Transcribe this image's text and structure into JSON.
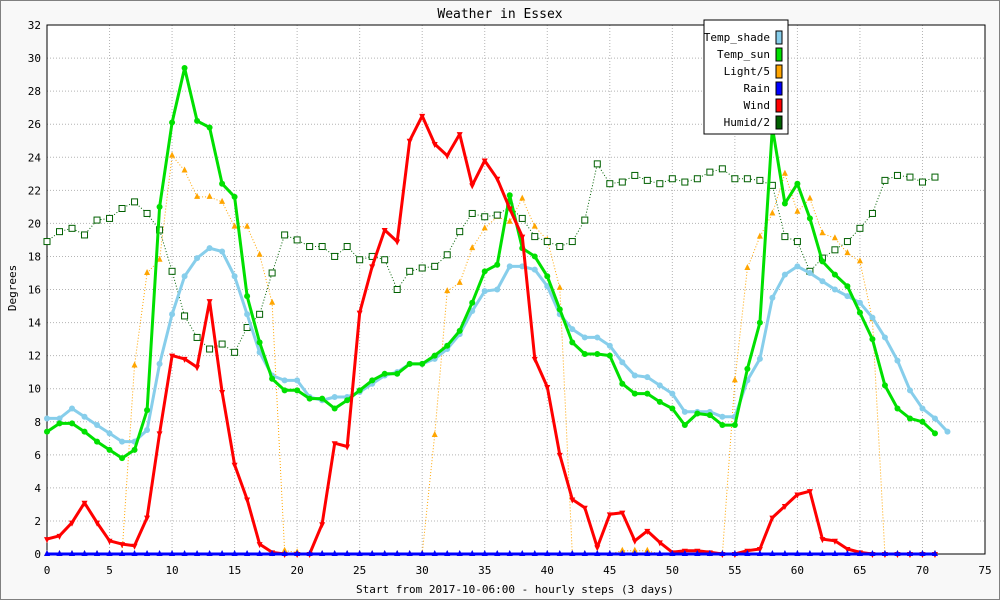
{
  "chart_data": {
    "type": "line",
    "title": "Weather in Essex",
    "xlabel": "Start from 2017-10-06:00 - hourly steps (3 days)",
    "ylabel": "Degrees",
    "xlim": [
      0,
      75
    ],
    "ylim": [
      0,
      32
    ],
    "xticks": [
      0,
      5,
      10,
      15,
      20,
      25,
      30,
      35,
      40,
      45,
      50,
      55,
      60,
      65,
      70,
      75
    ],
    "yticks": [
      0,
      2,
      4,
      6,
      8,
      10,
      12,
      14,
      16,
      18,
      20,
      22,
      24,
      26,
      28,
      30,
      32
    ],
    "grid": true,
    "legend_position": "top-right",
    "series": [
      {
        "name": "Temp_shade",
        "color": "#87ceeb",
        "values": [
          8.2,
          8.2,
          8.8,
          8.3,
          7.8,
          7.3,
          6.8,
          6.8,
          7.5,
          11.5,
          14.5,
          16.8,
          17.9,
          18.5,
          18.3,
          16.8,
          14.5,
          12.2,
          10.8,
          10.5,
          10.5,
          9.5,
          9.3,
          9.5,
          9.5,
          9.8,
          10.3,
          10.8,
          11.0,
          11.5,
          11.5,
          11.8,
          12.4,
          13.3,
          14.7,
          15.9,
          16.0,
          17.4,
          17.4,
          17.2,
          16.2,
          14.5,
          13.6,
          13.1,
          13.1,
          12.6,
          11.6,
          10.8,
          10.7,
          10.2,
          9.7,
          8.6,
          8.6,
          8.6,
          8.3,
          8.3,
          10.5,
          11.8,
          15.5,
          16.9,
          17.4,
          17.0,
          16.5,
          16.0,
          15.6,
          15.2,
          14.3,
          13.1,
          11.7,
          9.9,
          8.8,
          8.2,
          7.4
        ]
      },
      {
        "name": "Temp_sun",
        "color": "#00e000",
        "values": [
          7.4,
          7.9,
          7.9,
          7.4,
          6.8,
          6.3,
          5.8,
          6.3,
          8.7,
          21.0,
          26.1,
          29.4,
          26.2,
          25.8,
          22.4,
          21.6,
          15.6,
          12.8,
          10.6,
          9.9,
          9.9,
          9.4,
          9.4,
          8.8,
          9.3,
          9.9,
          10.5,
          10.9,
          10.9,
          11.5,
          11.5,
          12.0,
          12.6,
          13.5,
          15.2,
          17.1,
          17.5,
          21.7,
          18.5,
          18.0,
          16.8,
          14.8,
          12.8,
          12.1,
          12.1,
          12.0,
          10.3,
          9.7,
          9.7,
          9.2,
          8.8,
          7.8,
          8.5,
          8.4,
          7.8,
          7.8,
          11.2,
          14.0,
          25.8,
          21.2,
          22.4,
          20.3,
          17.7,
          16.9,
          16.2,
          14.6,
          13.0,
          10.2,
          8.8,
          8.2,
          8.0,
          7.3
        ]
      },
      {
        "name": "Light/5",
        "color": "#ffa500",
        "values": [
          0,
          0,
          0,
          0,
          0,
          0,
          0,
          11.4,
          17.0,
          17.8,
          24.1,
          23.2,
          21.6,
          21.6,
          21.3,
          19.8,
          19.8,
          18.1,
          15.2,
          0.2,
          0.1,
          0,
          0,
          0,
          0,
          0,
          0,
          0,
          0,
          0,
          0,
          7.2,
          15.9,
          16.4,
          18.5,
          19.7,
          20.4,
          20.1,
          21.5,
          19.8,
          19.0,
          16.1,
          0,
          0,
          0,
          0,
          0.2,
          0.2,
          0.2,
          0,
          0,
          0,
          0,
          0,
          0,
          10.5,
          17.3,
          19.2,
          20.6,
          23.0,
          20.7,
          21.5,
          19.4,
          19.1,
          18.2,
          17.7,
          14.2,
          0,
          0,
          0,
          0,
          0
        ]
      },
      {
        "name": "Rain",
        "color": "#0000ff",
        "values": [
          0,
          0,
          0,
          0,
          0,
          0,
          0,
          0,
          0,
          0,
          0,
          0,
          0,
          0,
          0,
          0,
          0,
          0,
          0,
          0,
          0,
          0,
          0,
          0,
          0,
          0,
          0,
          0,
          0,
          0,
          0,
          0,
          0,
          0,
          0,
          0,
          0,
          0,
          0,
          0,
          0,
          0,
          0,
          0,
          0,
          0,
          0,
          0,
          0,
          0,
          0,
          0,
          0,
          0,
          0,
          0,
          0,
          0,
          0,
          0,
          0,
          0,
          0,
          0,
          0,
          0,
          0,
          0,
          0,
          0,
          0,
          0
        ]
      },
      {
        "name": "Wind",
        "color": "#ff0000",
        "values": [
          0.9,
          1.1,
          1.9,
          3.1,
          1.9,
          0.8,
          0.6,
          0.5,
          2.2,
          7.3,
          12.0,
          11.8,
          11.3,
          15.3,
          9.8,
          5.4,
          3.3,
          0.6,
          0.1,
          0,
          0,
          0,
          1.8,
          6.7,
          6.5,
          14.6,
          17.4,
          19.6,
          18.9,
          25.0,
          26.5,
          24.8,
          24.1,
          25.4,
          22.3,
          23.8,
          22.7,
          20.9,
          19.2,
          11.8,
          10.1,
          6.0,
          3.3,
          2.8,
          0.4,
          2.4,
          2.5,
          0.8,
          1.4,
          0.7,
          0.1,
          0.2,
          0.2,
          0.1,
          0,
          0,
          0.2,
          0.3,
          2.2,
          2.9,
          3.6,
          3.8,
          0.9,
          0.8,
          0.3,
          0.1,
          0,
          0,
          0,
          0,
          0,
          0
        ]
      },
      {
        "name": "Humid/2",
        "color": "#006000",
        "values": [
          18.9,
          19.5,
          19.7,
          19.3,
          20.2,
          20.3,
          20.9,
          21.3,
          20.6,
          19.6,
          17.1,
          14.4,
          13.1,
          12.4,
          12.7,
          12.2,
          13.7,
          14.5,
          17.0,
          19.3,
          19.0,
          18.6,
          18.6,
          18.0,
          18.6,
          17.8,
          18.0,
          17.8,
          16.0,
          17.1,
          17.3,
          17.4,
          18.1,
          19.5,
          20.6,
          20.4,
          20.5,
          21.0,
          20.3,
          19.2,
          18.9,
          18.6,
          18.9,
          20.2,
          23.6,
          22.4,
          22.5,
          22.9,
          22.6,
          22.4,
          22.7,
          22.5,
          22.7,
          23.1,
          23.3,
          22.7,
          22.7,
          22.6,
          22.3,
          19.2,
          18.9,
          17.1,
          17.9,
          18.4,
          18.9,
          19.7,
          20.6,
          22.6,
          22.9,
          22.8,
          22.5,
          22.8
        ]
      }
    ]
  }
}
